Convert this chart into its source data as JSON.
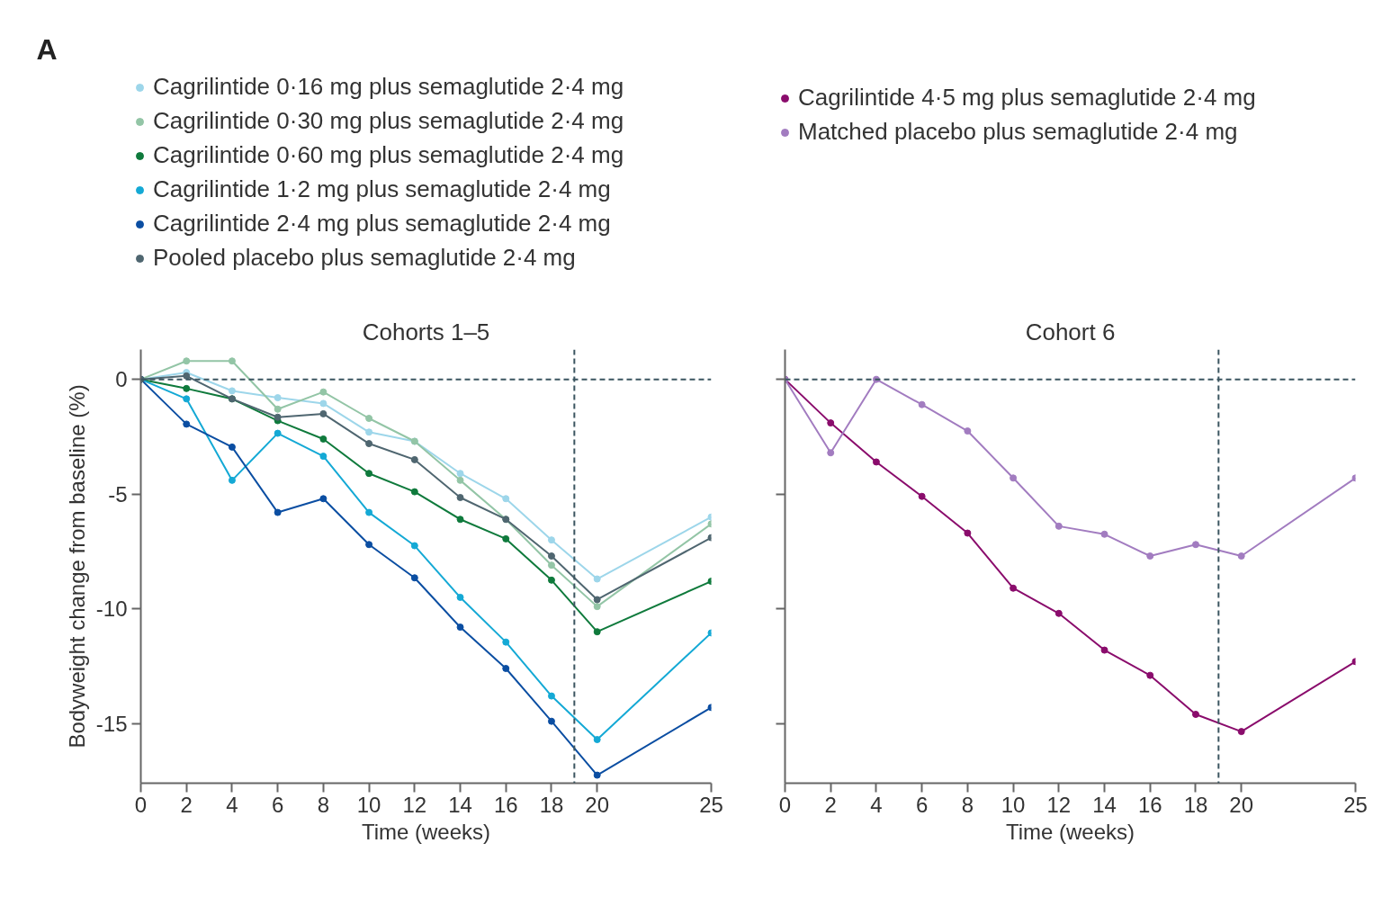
{
  "chart_data": [
    {
      "type": "line",
      "title": "Cohorts 1–5",
      "annotations": [
        "A"
      ],
      "xlabel": "Time (weeks)",
      "ylabel": "Bodyweight change from baseline (%)",
      "x": [
        0,
        2,
        4,
        6,
        8,
        10,
        12,
        14,
        16,
        18,
        20,
        25
      ],
      "series": [
        {
          "name": "Cagrilintide 0·16 mg plus semaglutide 2·4 mg",
          "color": "#9dd6ea",
          "values": [
            0,
            0.3,
            -0.5,
            -0.8,
            -1.05,
            -2.3,
            -2.7,
            -4.1,
            -5.2,
            -7.0,
            -8.7,
            -6.0
          ]
        },
        {
          "name": "Cagrilintide 0·30 mg plus semaglutide 2·4 mg",
          "color": "#93c5a6",
          "values": [
            0,
            0.8,
            0.8,
            -1.3,
            -0.55,
            -1.7,
            -2.7,
            -4.4,
            -6.1,
            -8.1,
            -9.9,
            -6.3
          ]
        },
        {
          "name": "Cagrilintide 0·60 mg plus semaglutide 2·4 mg",
          "color": "#0f7a3c",
          "values": [
            0,
            -0.4,
            -0.85,
            -1.8,
            -2.6,
            -4.1,
            -4.9,
            -6.1,
            -6.95,
            -8.75,
            -11.0,
            -8.8
          ]
        },
        {
          "name": "Cagrilintide 1·2 mg plus semaglutide 2·4 mg",
          "color": "#14a9d5",
          "values": [
            0,
            -0.85,
            -4.4,
            -2.35,
            -3.35,
            -5.8,
            -7.25,
            -9.5,
            -11.45,
            -13.8,
            -15.7,
            -11.05
          ]
        },
        {
          "name": "Cagrilintide 2·4 mg plus semaglutide 2·4 mg",
          "color": "#0b4ea2",
          "values": [
            0,
            -1.95,
            -2.95,
            -5.8,
            -5.2,
            -7.2,
            -8.65,
            -10.8,
            -12.6,
            -14.9,
            -17.25,
            -14.3
          ]
        },
        {
          "name": "Pooled placebo plus semaglutide 2·4 mg",
          "color": "#4f6670",
          "values": [
            0,
            0.15,
            -0.85,
            -1.65,
            -1.5,
            -2.8,
            -3.5,
            -5.15,
            -6.1,
            -7.7,
            -9.6,
            -6.9
          ]
        }
      ],
      "xlim": [
        0,
        25
      ],
      "xticks": [
        0,
        2,
        4,
        6,
        8,
        10,
        12,
        14,
        16,
        18,
        20,
        25
      ],
      "ylim": [
        -17.6,
        1.3
      ],
      "yticks": [
        0,
        -5,
        -10,
        -15
      ],
      "ref_lines": [
        {
          "axis": "y",
          "value": 0,
          "color": "#3b5560",
          "line_style": "dashed"
        },
        {
          "axis": "x",
          "value": 19,
          "color": "#3b5560",
          "line_style": "dashed"
        }
      ],
      "marker": "circle",
      "line_style": "solid",
      "grid": false,
      "legend": "top"
    },
    {
      "type": "line",
      "title": "Cohort 6",
      "xlabel": "Time (weeks)",
      "x": [
        0,
        2,
        4,
        6,
        8,
        10,
        12,
        14,
        16,
        18,
        20,
        25
      ],
      "series": [
        {
          "name": "Cagrilintide 4·5 mg plus semaglutide 2·4 mg",
          "color": "#8a0c6c",
          "values": [
            0,
            -1.9,
            -3.6,
            -5.1,
            -6.7,
            -9.1,
            -10.2,
            -11.8,
            -12.9,
            -14.6,
            -15.35,
            -12.3
          ]
        },
        {
          "name": "Matched placebo plus semaglutide 2·4 mg",
          "color": "#a27cc0",
          "values": [
            0,
            -3.2,
            0,
            -1.1,
            -2.25,
            -4.3,
            -6.4,
            -6.75,
            -7.7,
            -7.2,
            -7.7,
            -4.3
          ]
        }
      ],
      "xlim": [
        0,
        25
      ],
      "xticks": [
        0,
        2,
        4,
        6,
        8,
        10,
        12,
        14,
        16,
        18,
        20,
        25
      ],
      "ylim": [
        -17.6,
        1.3
      ],
      "yticks": [
        {
          "value": 0,
          "label": null
        },
        {
          "value": -5,
          "label": null
        },
        {
          "value": -10,
          "label": null
        },
        {
          "value": -15,
          "label": null
        }
      ],
      "ref_lines": [
        {
          "axis": "y",
          "value": 0,
          "color": "#3b5560",
          "line_style": "dashed"
        },
        {
          "axis": "x",
          "value": 19,
          "color": "#3b5560",
          "line_style": "dashed"
        }
      ],
      "marker": "circle",
      "line_style": "solid",
      "grid": false,
      "legend": "top",
      "tick_labels": "x"
    }
  ]
}
